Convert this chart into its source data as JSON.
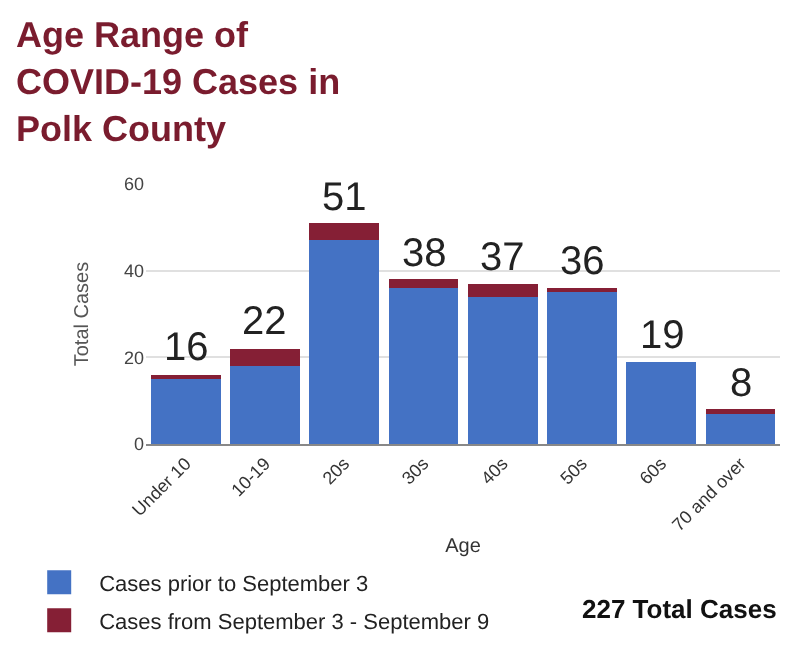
{
  "chart_data": {
    "type": "bar",
    "stacked": true,
    "title": "Age Range of\nCOVID-19 Cases in\nPolk County",
    "xlabel": "Age",
    "ylabel": "Total Cases",
    "categories": [
      "Under 10",
      "10-19",
      "20s",
      "30s",
      "40s",
      "50s",
      "60s",
      "70 and over"
    ],
    "series": [
      {
        "name": "Cases prior to September 3",
        "color": "#4472c4",
        "values": [
          15,
          18,
          47,
          36,
          34,
          35,
          19,
          7
        ]
      },
      {
        "name": "Cases from September 3 - September 9",
        "color": "#851f35",
        "values": [
          1,
          4,
          4,
          2,
          3,
          1,
          0,
          1
        ]
      }
    ],
    "totals": [
      "16",
      "22",
      "51",
      "38",
      "37",
      "36",
      "19",
      "8"
    ],
    "ylim": [
      0,
      60
    ],
    "yticks": [
      0,
      20,
      40,
      60
    ],
    "grid": "y",
    "legend": "bottom left",
    "annotations": [
      "227 Total Cases"
    ]
  }
}
